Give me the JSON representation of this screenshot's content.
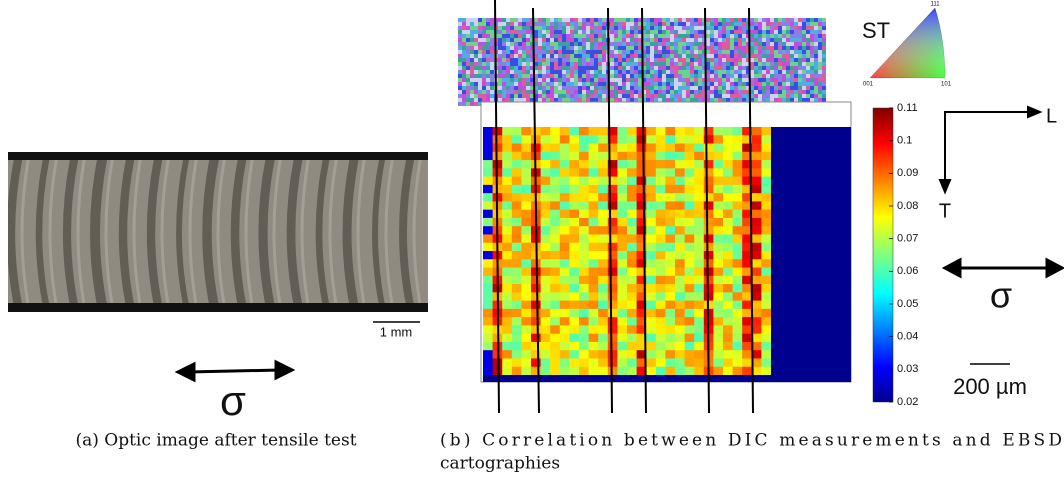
{
  "panel_a": {
    "scale_bar": "1 mm",
    "stress_symbol": "σ",
    "caption": "(a) Optic image after tensile test"
  },
  "panel_b": {
    "ipf_label": "ST",
    "ipf_corners": [
      "111",
      "001",
      "101"
    ],
    "colorbar_ticks": [
      0.11,
      0.1,
      0.09,
      0.08,
      0.07,
      0.06,
      0.05,
      0.04,
      0.03,
      0.02
    ],
    "axes": [
      "L",
      "T"
    ],
    "stress_symbol": "σ",
    "scale_bar": "200 µm",
    "caption": [
      "(b) Correlation between DIC measurements and EBSD",
      "cartographies"
    ]
  }
}
